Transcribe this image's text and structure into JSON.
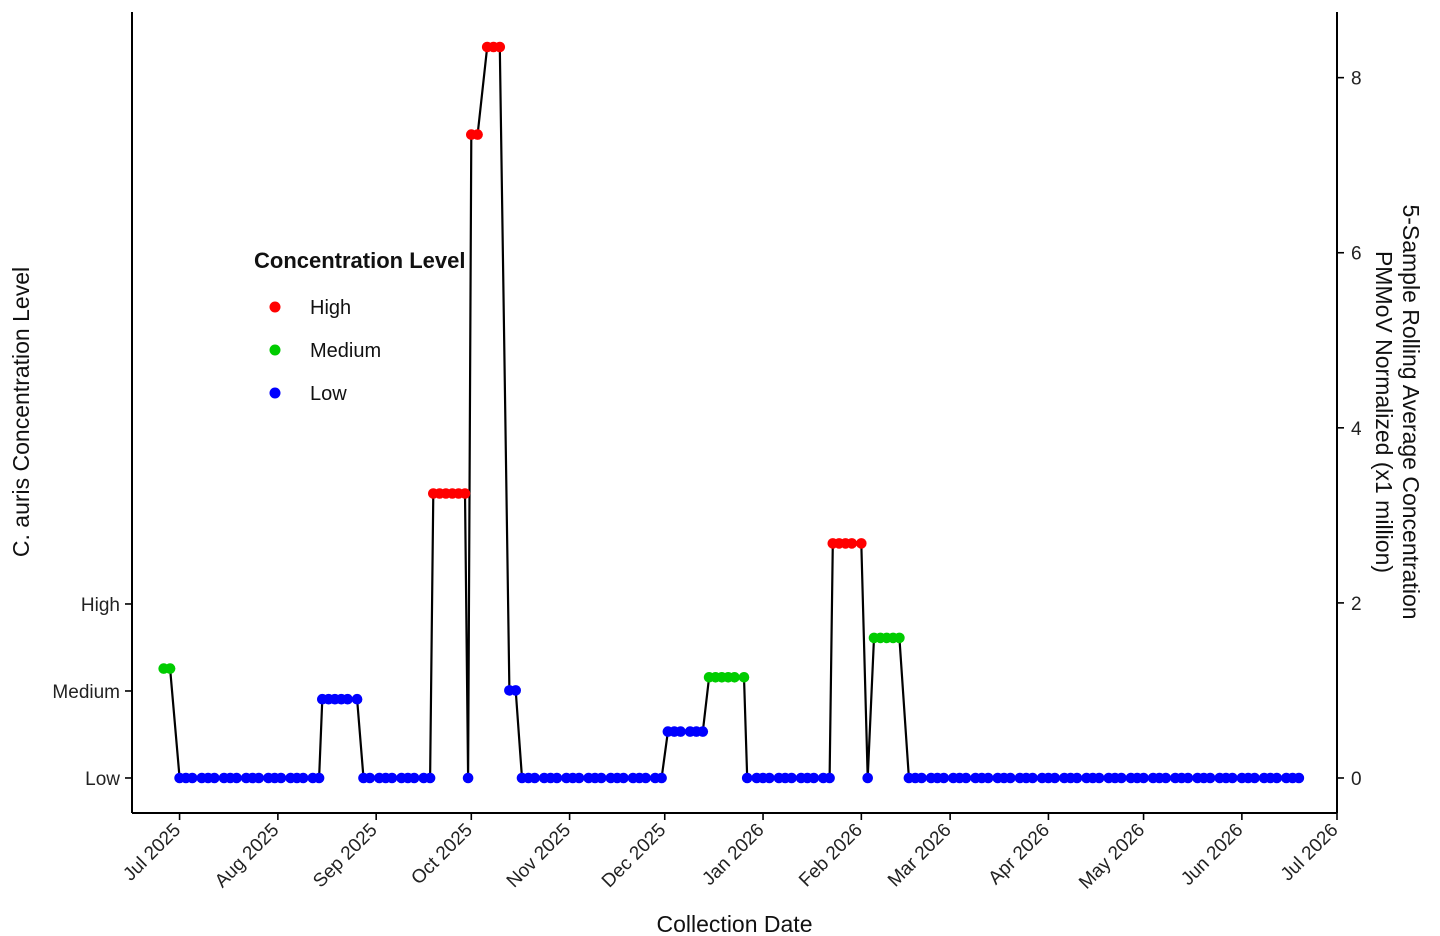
{
  "chart_data": {
    "type": "line",
    "xlabel": "Collection Date",
    "ylabel_left": "C. auris Concentration Level",
    "ylabel_right": [
      "5-Sample Rolling Average Concentration",
      "PMMoV Normalized (x1 million)"
    ],
    "x_ticks": [
      "Jul 2025",
      "Aug 2025",
      "Sep 2025",
      "Oct 2025",
      "Nov 2025",
      "Dec 2025",
      "Jan 2026",
      "Feb 2026",
      "Mar 2026",
      "Apr 2026",
      "May 2026",
      "Jun 2026",
      "Jul 2026"
    ],
    "x_tick_dates": [
      "2025-07-01",
      "2025-08-01",
      "2025-09-01",
      "2025-10-01",
      "2025-11-01",
      "2025-12-01",
      "2026-01-01",
      "2026-02-01",
      "2026-03-01",
      "2026-04-01",
      "2026-05-01",
      "2026-06-01",
      "2026-07-01"
    ],
    "xlim": [
      "2025-06-16",
      "2026-07-01"
    ],
    "left_axis": {
      "categories": [
        "Low",
        "Medium",
        "High"
      ],
      "category_values": [
        0,
        1,
        2
      ]
    },
    "right_axis": {
      "ylim": [
        -0.4,
        8.75
      ],
      "ticks": [
        0,
        2,
        4,
        6,
        8
      ]
    },
    "legend": {
      "title": "Concentration Level",
      "placement": "left-middle",
      "items": [
        {
          "label": "High",
          "color": "#ff0000"
        },
        {
          "label": "Medium",
          "color": "#00cc00"
        },
        {
          "label": "Low",
          "color": "#0000ff"
        }
      ]
    },
    "colors": {
      "High": "#ff0000",
      "Medium": "#00cc00",
      "Low": "#0000ff"
    },
    "series": [
      {
        "x": [
          "2025-06-26",
          "2025-06-28"
        ],
        "y": 1.25,
        "level": "Medium"
      },
      {
        "x": [
          "2025-07-01",
          "2025-07-03",
          "2025-07-05",
          "2025-07-08",
          "2025-07-10",
          "2025-07-12",
          "2025-07-15",
          "2025-07-17",
          "2025-07-19",
          "2025-07-22",
          "2025-07-24",
          "2025-07-26",
          "2025-07-29",
          "2025-07-31",
          "2025-08-02",
          "2025-08-05",
          "2025-08-07",
          "2025-08-09",
          "2025-08-12",
          "2025-08-14"
        ],
        "y": 0,
        "level": "Low"
      },
      {
        "x": [
          "2025-08-15",
          "2025-08-17",
          "2025-08-19",
          "2025-08-21",
          "2025-08-23",
          "2025-08-26"
        ],
        "y": 0.9,
        "level": "Low"
      },
      {
        "x": [
          "2025-08-28",
          "2025-08-30",
          "2025-09-02",
          "2025-09-04",
          "2025-09-06",
          "2025-09-09",
          "2025-09-11",
          "2025-09-13",
          "2025-09-16",
          "2025-09-18"
        ],
        "y": 0,
        "level": "Low"
      },
      {
        "x": [
          "2025-09-19",
          "2025-09-21",
          "2025-09-23",
          "2025-09-25",
          "2025-09-27",
          "2025-09-29"
        ],
        "y": 3.25,
        "level": "High"
      },
      {
        "x": [
          "2025-09-30"
        ],
        "y": 0,
        "level": "Low"
      },
      {
        "x": [
          "2025-10-01",
          "2025-10-03"
        ],
        "y": 7.35,
        "level": "High"
      },
      {
        "x": [
          "2025-10-06",
          "2025-10-08",
          "2025-10-10"
        ],
        "y": 8.35,
        "level": "High"
      },
      {
        "x": [
          "2025-10-13",
          "2025-10-15"
        ],
        "y": 1.0,
        "level": "Low"
      },
      {
        "x": [
          "2025-10-17",
          "2025-10-19",
          "2025-10-21",
          "2025-10-24",
          "2025-10-26",
          "2025-10-28",
          "2025-10-31",
          "2025-11-02",
          "2025-11-04",
          "2025-11-07",
          "2025-11-09",
          "2025-11-11",
          "2025-11-14",
          "2025-11-16",
          "2025-11-18",
          "2025-11-21",
          "2025-11-23",
          "2025-11-25",
          "2025-11-28",
          "2025-11-30"
        ],
        "y": 0,
        "level": "Low"
      },
      {
        "x": [
          "2025-12-02",
          "2025-12-04",
          "2025-12-06",
          "2025-12-09",
          "2025-12-11",
          "2025-12-13"
        ],
        "y": 0.53,
        "level": "Low"
      },
      {
        "x": [
          "2025-12-15",
          "2025-12-17",
          "2025-12-19",
          "2025-12-21",
          "2025-12-23",
          "2025-12-26"
        ],
        "y": 1.15,
        "level": "Medium"
      },
      {
        "x": [
          "2025-12-27",
          "2025-12-30",
          "2026-01-01",
          "2026-01-03",
          "2026-01-06",
          "2026-01-08",
          "2026-01-10",
          "2026-01-13",
          "2026-01-15",
          "2026-01-17",
          "2026-01-20",
          "2026-01-22"
        ],
        "y": 0,
        "level": "Low"
      },
      {
        "x": [
          "2026-01-23",
          "2026-01-25",
          "2026-01-27",
          "2026-01-29",
          "2026-02-01"
        ],
        "y": 2.68,
        "level": "High"
      },
      {
        "x": [
          "2026-02-03"
        ],
        "y": 0,
        "level": "Low"
      },
      {
        "x": [
          "2026-02-05",
          "2026-02-07",
          "2026-02-09",
          "2026-02-11",
          "2026-02-13"
        ],
        "y": 1.6,
        "level": "Medium"
      },
      {
        "x": [
          "2026-02-16",
          "2026-02-18",
          "2026-02-20",
          "2026-02-23",
          "2026-02-25",
          "2026-02-27",
          "2026-03-02",
          "2026-03-04",
          "2026-03-06",
          "2026-03-09",
          "2026-03-11",
          "2026-03-13",
          "2026-03-16",
          "2026-03-18",
          "2026-03-20",
          "2026-03-23",
          "2026-03-25",
          "2026-03-27",
          "2026-03-30",
          "2026-04-01",
          "2026-04-03",
          "2026-04-06",
          "2026-04-08",
          "2026-04-10",
          "2026-04-13",
          "2026-04-15",
          "2026-04-17",
          "2026-04-20",
          "2026-04-22",
          "2026-04-24",
          "2026-04-27",
          "2026-04-29",
          "2026-05-01",
          "2026-05-04",
          "2026-05-06",
          "2026-05-08",
          "2026-05-11",
          "2026-05-13",
          "2026-05-15",
          "2026-05-18",
          "2026-05-20",
          "2026-05-22",
          "2026-05-25",
          "2026-05-27",
          "2026-05-29",
          "2026-06-01",
          "2026-06-03",
          "2026-06-05",
          "2026-06-08",
          "2026-06-10",
          "2026-06-12",
          "2026-06-15",
          "2026-06-17",
          "2026-06-19"
        ],
        "y": 0,
        "level": "Low"
      }
    ]
  }
}
